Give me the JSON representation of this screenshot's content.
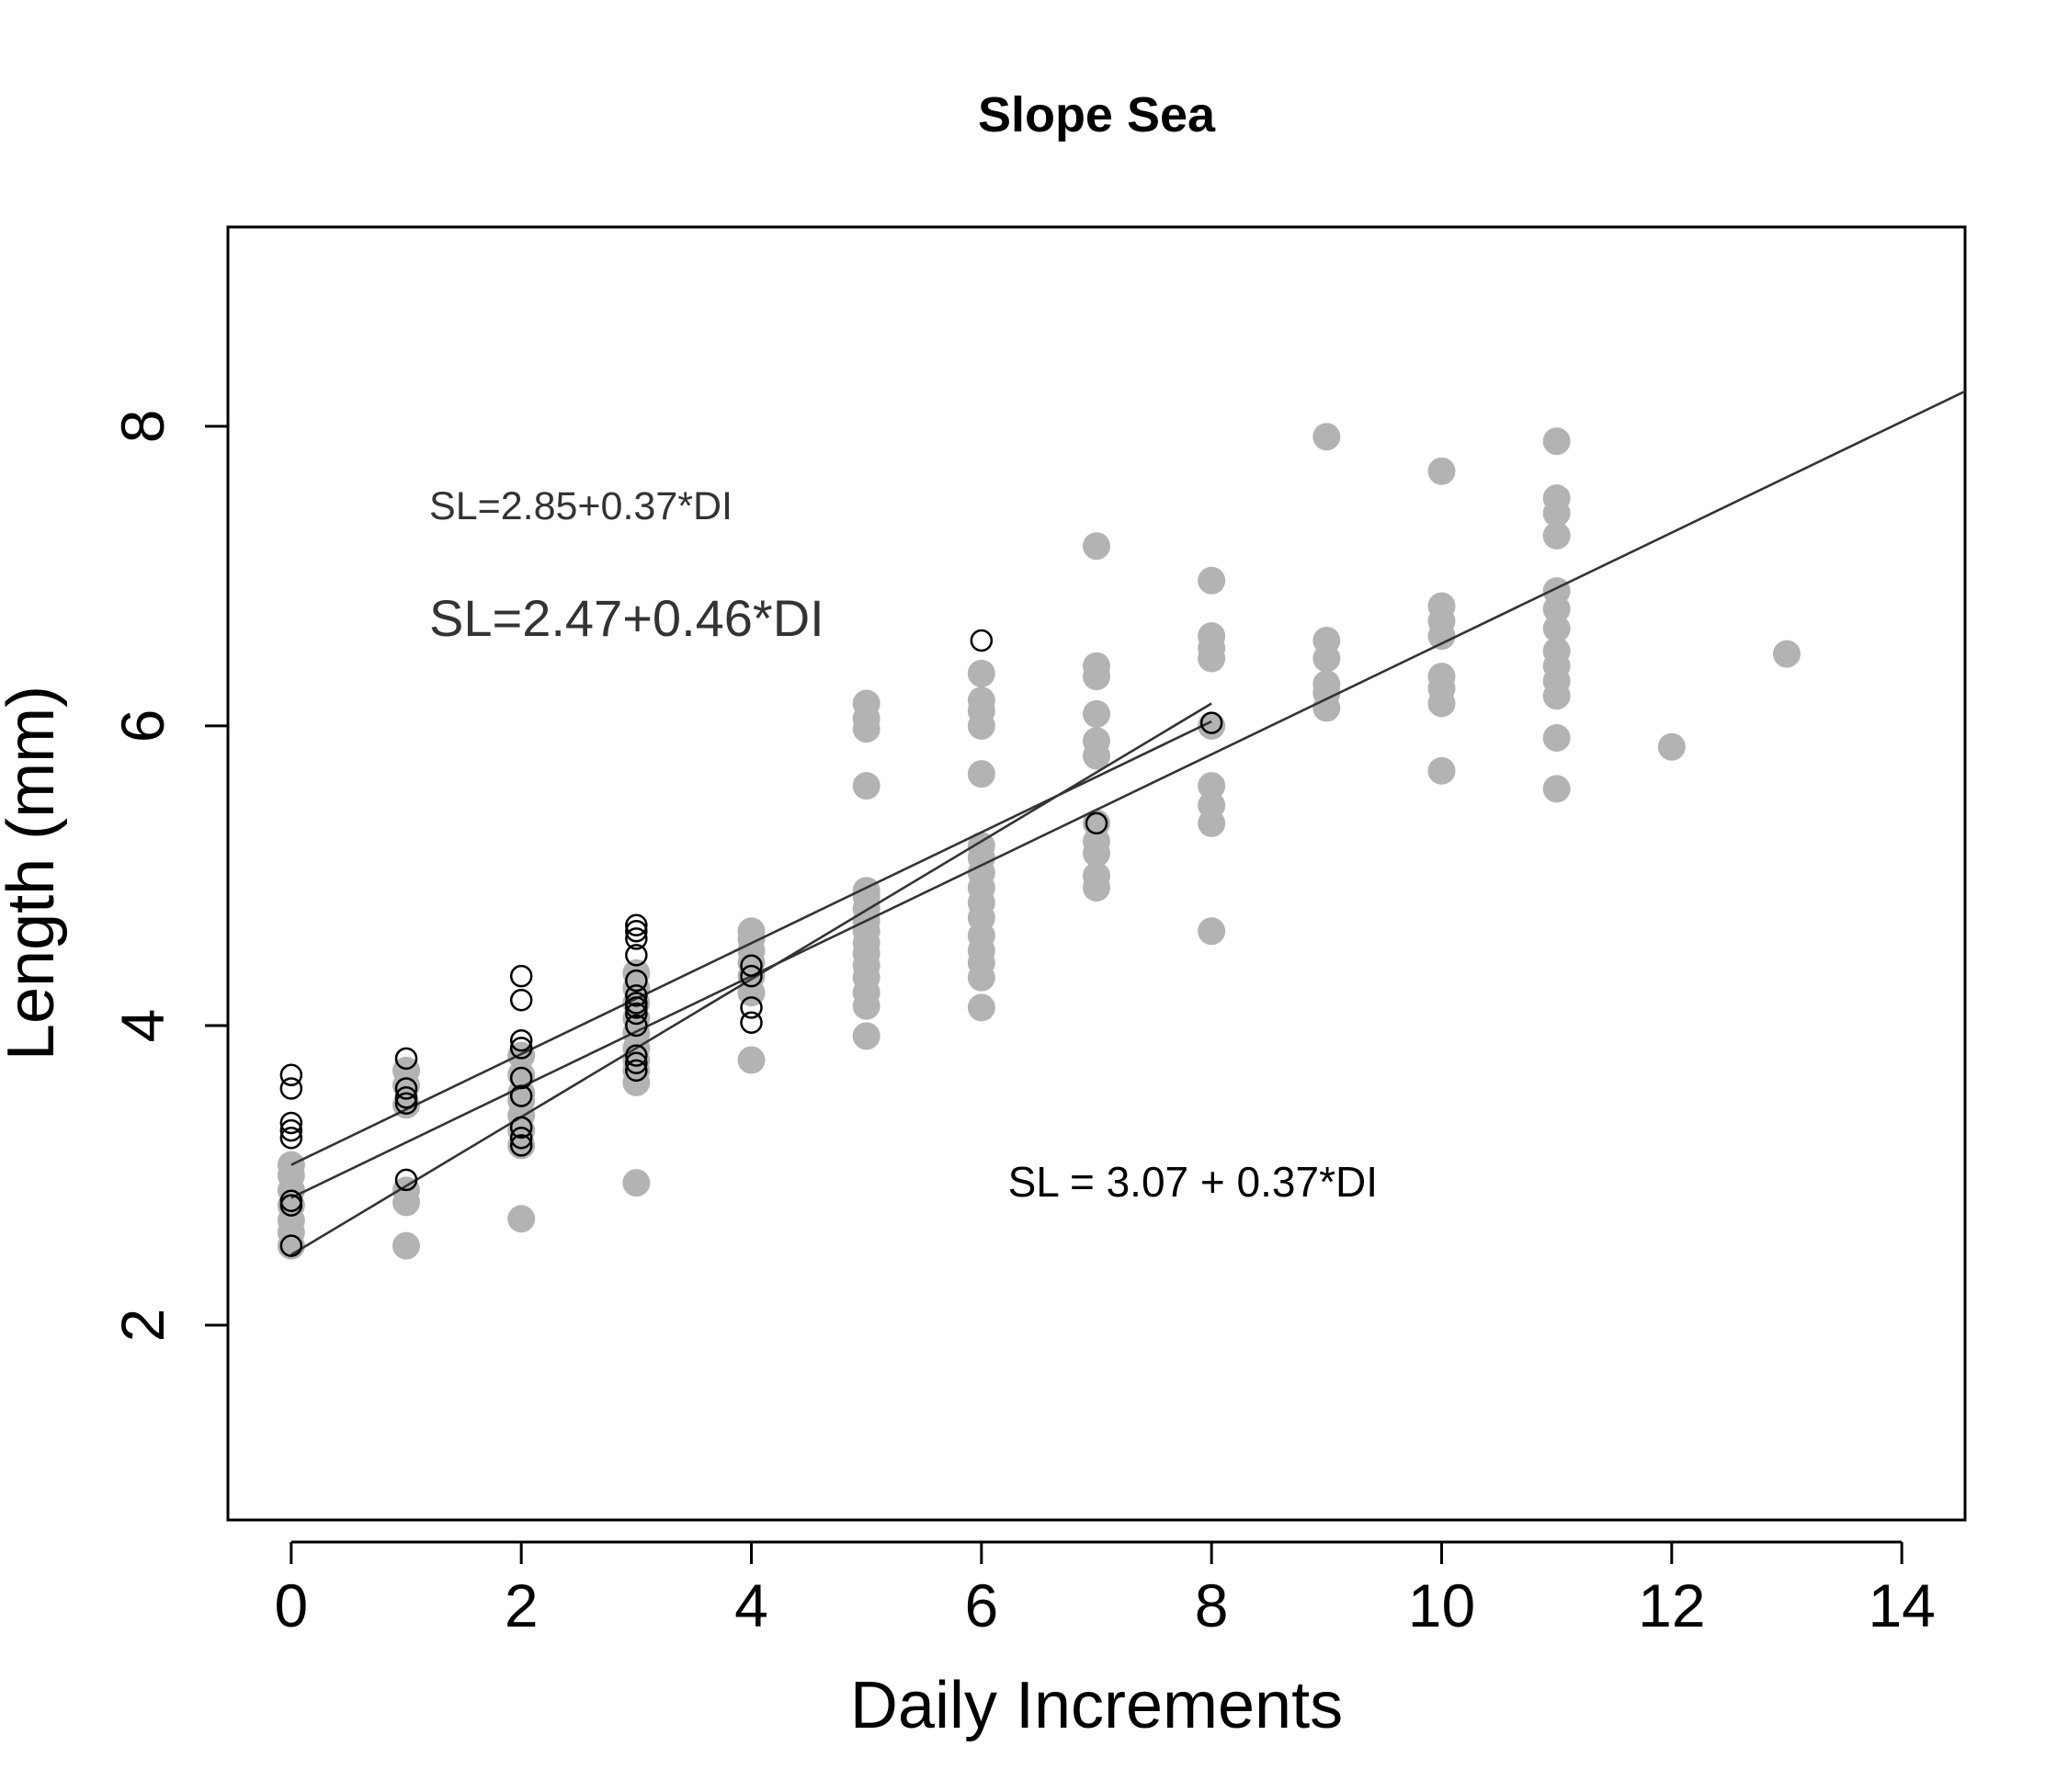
{
  "chart_data": {
    "type": "scatter",
    "title": "Slope Sea",
    "xlabel": "Daily Increments",
    "ylabel": "Length (mm)",
    "xlim": [
      -0.55,
      14.55
    ],
    "ylim": [
      0.7,
      9.33
    ],
    "x_ticks": [
      0,
      2,
      4,
      6,
      8,
      10,
      12,
      14
    ],
    "y_ticks": [
      2,
      4,
      6,
      8
    ],
    "grid": false,
    "colors": {
      "gray_points": "#b3b3b3",
      "open_points": "#000000",
      "lines": "#333333",
      "frame": "#000000"
    },
    "series": [
      {
        "marker": "filled-circle",
        "color": "#b3b3b3",
        "points": [
          [
            0,
            2.53
          ],
          [
            0,
            2.62
          ],
          [
            0,
            2.7
          ],
          [
            0,
            2.8
          ],
          [
            0,
            2.9
          ],
          [
            0,
            3.0
          ],
          [
            0,
            3.07
          ],
          [
            1,
            2.53
          ],
          [
            1,
            2.82
          ],
          [
            1,
            2.9
          ],
          [
            1,
            3.47
          ],
          [
            1,
            3.6
          ],
          [
            1,
            3.7
          ],
          [
            2,
            2.71
          ],
          [
            2,
            3.2
          ],
          [
            2,
            3.3
          ],
          [
            2,
            3.4
          ],
          [
            2,
            3.5
          ],
          [
            2,
            3.55
          ],
          [
            2,
            3.67
          ],
          [
            2,
            3.8
          ],
          [
            3,
            2.95
          ],
          [
            3,
            3.62
          ],
          [
            3,
            3.7
          ],
          [
            3,
            3.77
          ],
          [
            3,
            3.85
          ],
          [
            3,
            3.95
          ],
          [
            3,
            4.05
          ],
          [
            3,
            4.15
          ],
          [
            3,
            4.25
          ],
          [
            3,
            4.35
          ],
          [
            4,
            3.77
          ],
          [
            4,
            4.22
          ],
          [
            4,
            4.33
          ],
          [
            4,
            4.42
          ],
          [
            4,
            4.5
          ],
          [
            4,
            4.58
          ],
          [
            4,
            4.63
          ],
          [
            5,
            3.93
          ],
          [
            5,
            4.13
          ],
          [
            5,
            4.22
          ],
          [
            5,
            4.32
          ],
          [
            5,
            4.4
          ],
          [
            5,
            4.48
          ],
          [
            5,
            4.55
          ],
          [
            5,
            4.63
          ],
          [
            5,
            4.7
          ],
          [
            5,
            4.78
          ],
          [
            5,
            4.86
          ],
          [
            5,
            4.9
          ],
          [
            5,
            5.6
          ],
          [
            5,
            5.98
          ],
          [
            5,
            6.05
          ],
          [
            5,
            6.15
          ],
          [
            6,
            4.12
          ],
          [
            6,
            4.32
          ],
          [
            6,
            4.42
          ],
          [
            6,
            4.5
          ],
          [
            6,
            4.6
          ],
          [
            6,
            4.72
          ],
          [
            6,
            4.82
          ],
          [
            6,
            4.92
          ],
          [
            6,
            5.02
          ],
          [
            6,
            5.12
          ],
          [
            6,
            5.2
          ],
          [
            6,
            5.68
          ],
          [
            6,
            6.0
          ],
          [
            6,
            6.1
          ],
          [
            6,
            6.17
          ],
          [
            6,
            6.35
          ],
          [
            7,
            4.92
          ],
          [
            7,
            5.0
          ],
          [
            7,
            5.15
          ],
          [
            7,
            5.23
          ],
          [
            7,
            5.35
          ],
          [
            7,
            5.8
          ],
          [
            7,
            5.9
          ],
          [
            7,
            6.08
          ],
          [
            7,
            6.33
          ],
          [
            7,
            6.4
          ],
          [
            7,
            7.2
          ],
          [
            8,
            4.63
          ],
          [
            8,
            5.35
          ],
          [
            8,
            5.47
          ],
          [
            8,
            5.6
          ],
          [
            8,
            6.0
          ],
          [
            8,
            6.45
          ],
          [
            8,
            6.52
          ],
          [
            8,
            6.6
          ],
          [
            8,
            6.97
          ],
          [
            9,
            6.12
          ],
          [
            9,
            6.22
          ],
          [
            9,
            6.28
          ],
          [
            9,
            6.45
          ],
          [
            9,
            6.57
          ],
          [
            9,
            7.93
          ],
          [
            10,
            5.7
          ],
          [
            10,
            6.15
          ],
          [
            10,
            6.25
          ],
          [
            10,
            6.33
          ],
          [
            10,
            6.6
          ],
          [
            10,
            6.7
          ],
          [
            10,
            6.8
          ],
          [
            10,
            7.7
          ],
          [
            11,
            5.58
          ],
          [
            11,
            5.92
          ],
          [
            11,
            6.2
          ],
          [
            11,
            6.3
          ],
          [
            11,
            6.4
          ],
          [
            11,
            6.5
          ],
          [
            11,
            6.65
          ],
          [
            11,
            6.78
          ],
          [
            11,
            6.9
          ],
          [
            11,
            7.27
          ],
          [
            11,
            7.42
          ],
          [
            11,
            7.52
          ],
          [
            11,
            7.9
          ],
          [
            12,
            5.86
          ],
          [
            13,
            6.48
          ]
        ]
      },
      {
        "marker": "open-circle",
        "color": "#000000",
        "points": [
          [
            0,
            2.53
          ],
          [
            0,
            2.8
          ],
          [
            0,
            2.83
          ],
          [
            0,
            3.25
          ],
          [
            0,
            3.3
          ],
          [
            0,
            3.35
          ],
          [
            0,
            3.58
          ],
          [
            0,
            3.67
          ],
          [
            1,
            2.97
          ],
          [
            1,
            3.48
          ],
          [
            1,
            3.52
          ],
          [
            1,
            3.58
          ],
          [
            1,
            3.78
          ],
          [
            2,
            3.2
          ],
          [
            2,
            3.25
          ],
          [
            2,
            3.32
          ],
          [
            2,
            3.53
          ],
          [
            2,
            3.65
          ],
          [
            2,
            3.85
          ],
          [
            2,
            3.9
          ],
          [
            2,
            4.17
          ],
          [
            2,
            4.33
          ],
          [
            3,
            3.7
          ],
          [
            3,
            3.75
          ],
          [
            3,
            3.8
          ],
          [
            3,
            4.0
          ],
          [
            3,
            4.08
          ],
          [
            3,
            4.12
          ],
          [
            3,
            4.15
          ],
          [
            3,
            4.2
          ],
          [
            3,
            4.3
          ],
          [
            3,
            4.47
          ],
          [
            3,
            4.58
          ],
          [
            3,
            4.63
          ],
          [
            3,
            4.67
          ],
          [
            4,
            4.02
          ],
          [
            4,
            4.12
          ],
          [
            4,
            4.33
          ],
          [
            4,
            4.4
          ],
          [
            6,
            6.57
          ],
          [
            7,
            5.35
          ],
          [
            8,
            6.02
          ]
        ]
      }
    ],
    "lines": [
      {
        "x": [
          0,
          14.55
        ],
        "intercept": 2.85,
        "slope": 0.37
      },
      {
        "x": [
          0,
          8
        ],
        "intercept": 2.47,
        "slope": 0.46
      },
      {
        "x": [
          0,
          8
        ],
        "intercept": 3.07,
        "slope": 0.37
      }
    ],
    "annotations": [
      {
        "text": "SL=2.85+0.37*DI",
        "x": 1.2,
        "y": 7.38,
        "size": "small"
      },
      {
        "text": "SL=2.47+0.46*DI",
        "x": 1.2,
        "y": 6.6,
        "size": "large"
      },
      {
        "text": "SL = 3.07 + 0.37*DI",
        "x": 6.23,
        "y": 2.86,
        "size": "mid"
      }
    ]
  }
}
